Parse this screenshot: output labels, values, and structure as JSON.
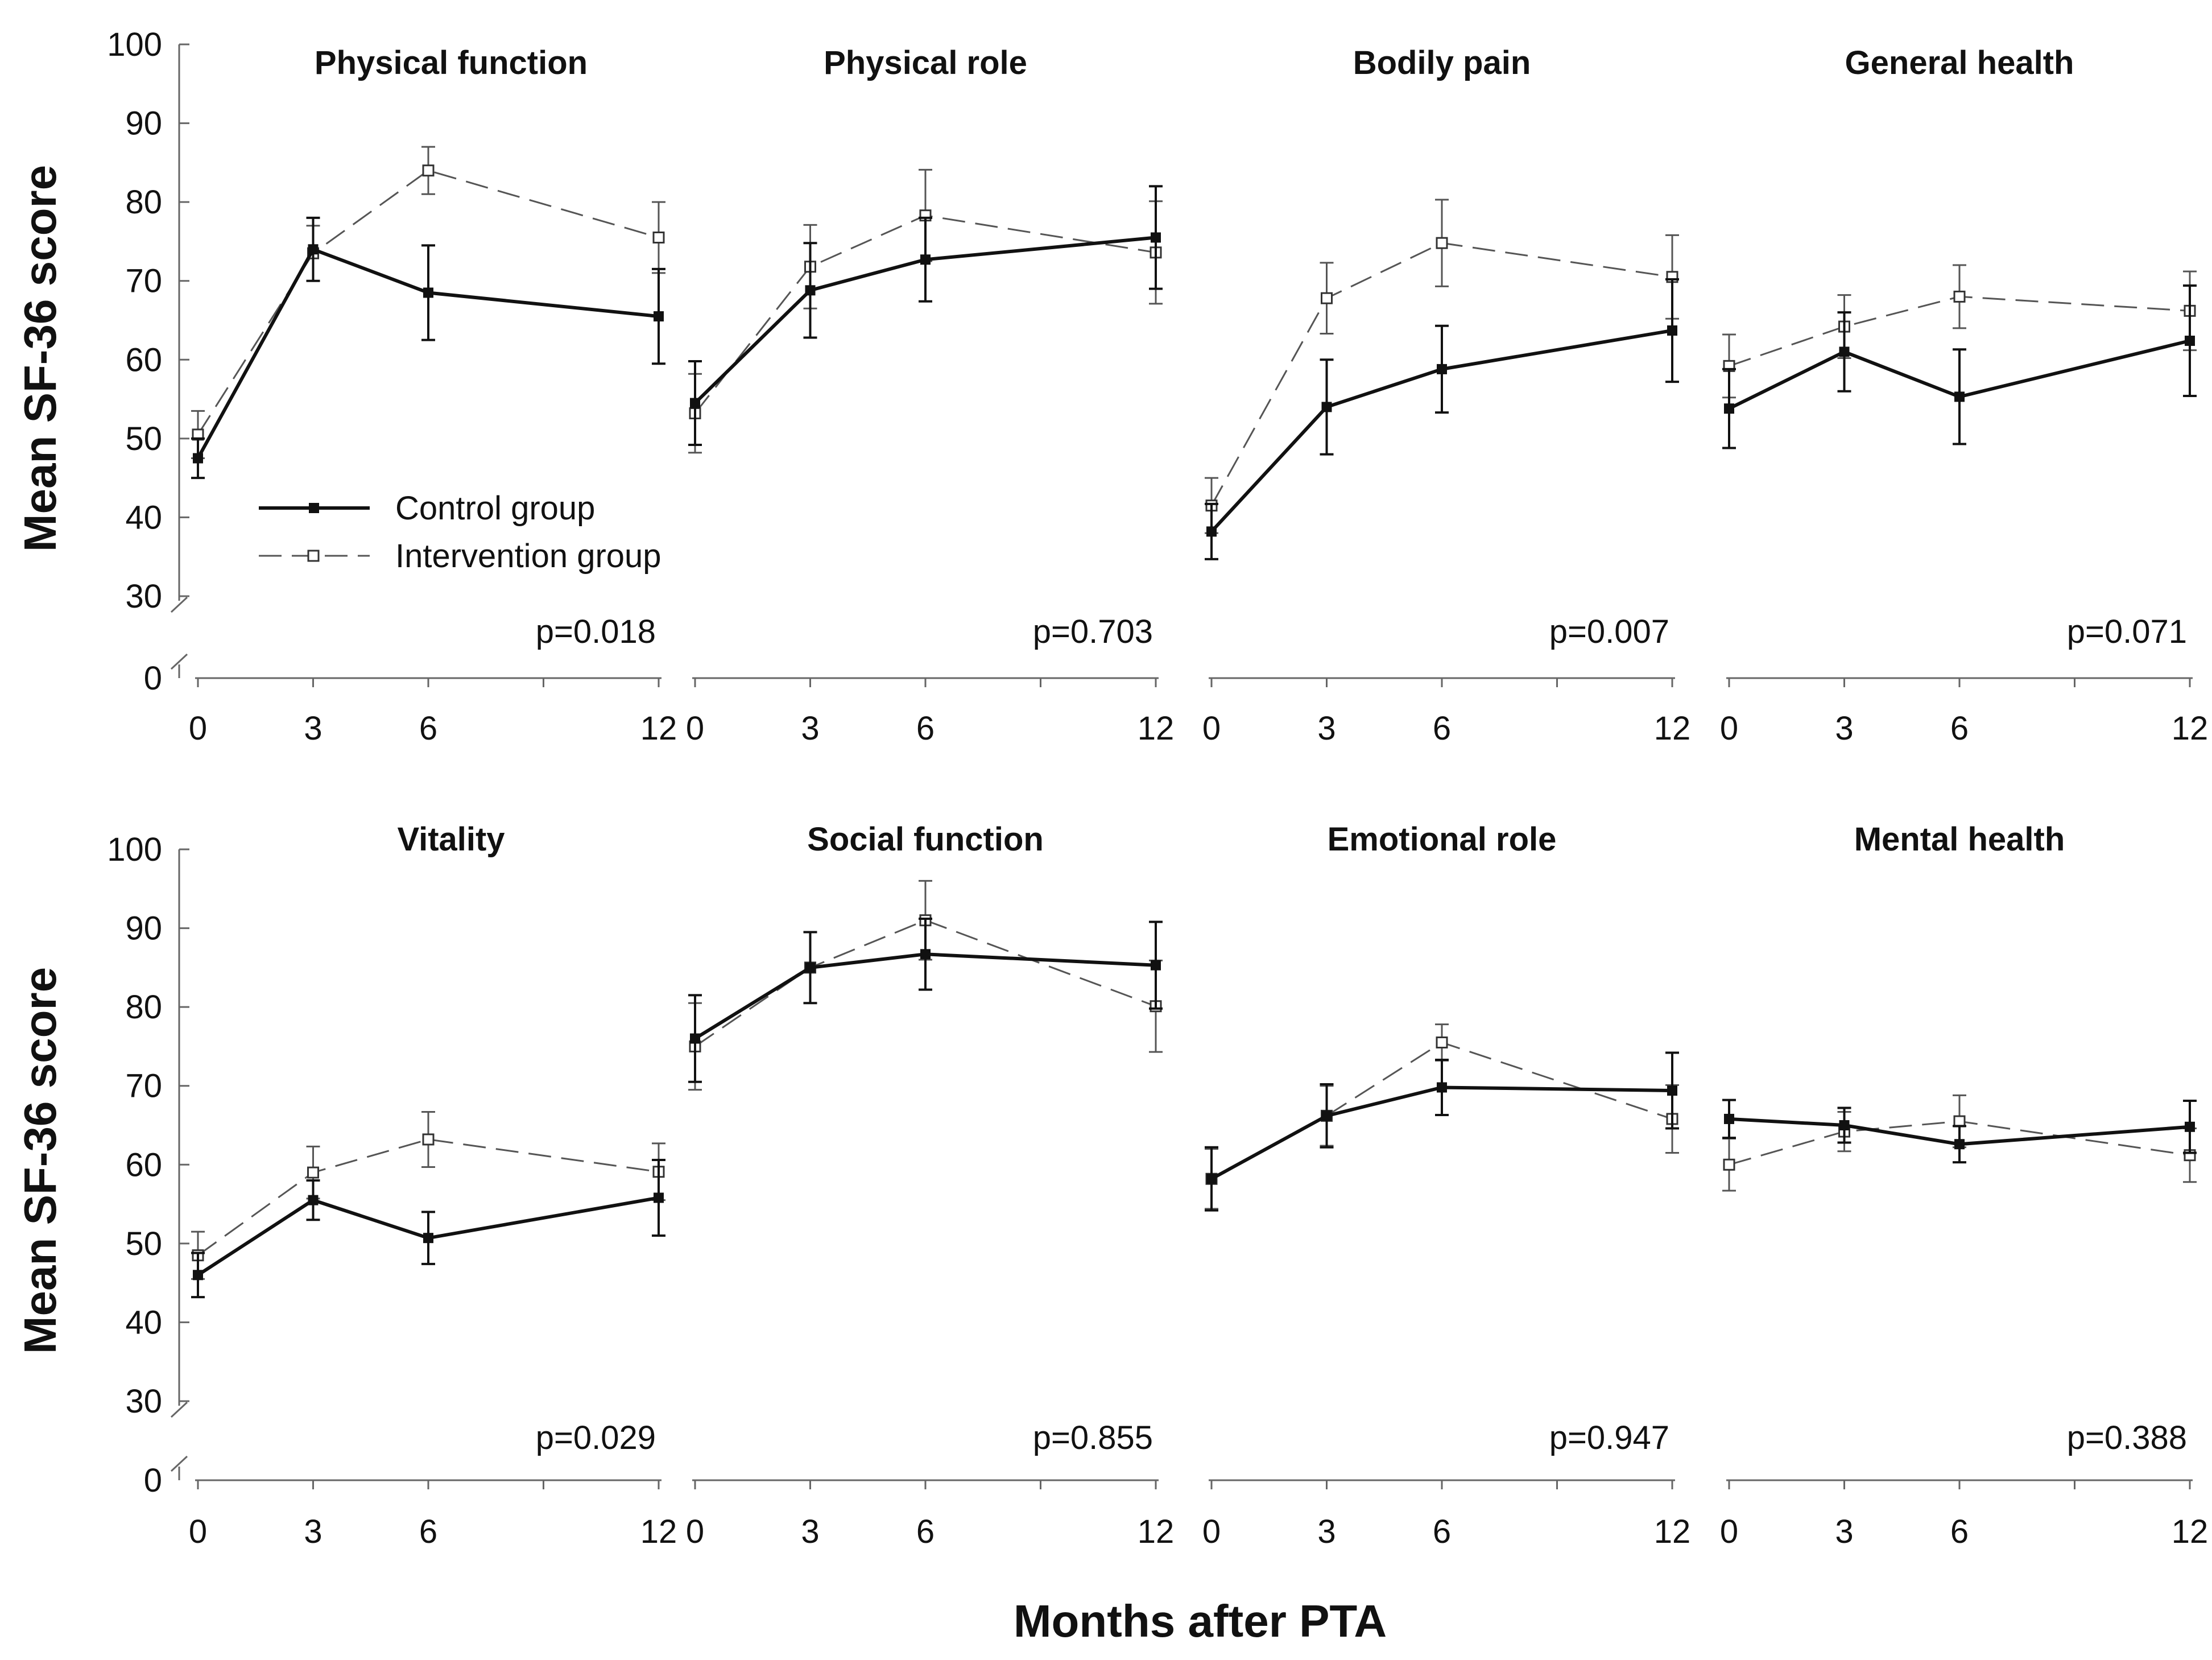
{
  "chart_data": {
    "type": "line",
    "figure": {
      "ylabel": "Mean SF-36 score",
      "xlabel": "Months after PTA",
      "x": [
        0,
        3,
        6,
        12
      ],
      "x_tick_labels": [
        "0",
        "3",
        "6",
        "12"
      ],
      "y_ticks": [
        30,
        40,
        50,
        60,
        70,
        80,
        90,
        100
      ],
      "y_tick_labels": [
        "30",
        "40",
        "50",
        "60",
        "70",
        "80",
        "90",
        "100"
      ],
      "y_zero_label": "0",
      "ylim": [
        30,
        100
      ],
      "axis_break": true,
      "legend": {
        "position": "inside-left of first panel",
        "entries": [
          {
            "name": "Control group",
            "style": "solid line, filled square"
          },
          {
            "name": "Intervention group",
            "style": "dashed line, open square"
          }
        ]
      }
    },
    "panels": [
      {
        "title": "Physical function",
        "p_value": "p=0.018",
        "series": [
          {
            "name": "Control group",
            "values": [
              47.5,
              74,
              68.5,
              65.5
            ],
            "errors": [
              2.5,
              4,
              6,
              6
            ]
          },
          {
            "name": "Intervention group",
            "values": [
              50.5,
              73.5,
              84,
              75.5
            ],
            "errors": [
              3,
              3.5,
              3,
              4.5
            ]
          }
        ]
      },
      {
        "title": "Physical role",
        "p_value": "p=0.703",
        "series": [
          {
            "name": "Control group",
            "values": [
              54.5,
              68.8,
              72.7,
              75.5
            ],
            "errors": [
              5.3,
              6,
              5.3,
              6.5
            ]
          },
          {
            "name": "Intervention group",
            "values": [
              53.2,
              71.8,
              78.3,
              73.6
            ],
            "errors": [
              5,
              5.3,
              5.8,
              6.5
            ]
          }
        ]
      },
      {
        "title": "Bodily pain",
        "p_value": "p=0.007",
        "series": [
          {
            "name": "Control group",
            "values": [
              38.2,
              54,
              58.8,
              63.7
            ],
            "errors": [
              3.5,
              6,
              5.5,
              6.5
            ]
          },
          {
            "name": "Intervention group",
            "values": [
              41.5,
              67.8,
              74.8,
              70.5
            ],
            "errors": [
              3.5,
              4.5,
              5.5,
              5.3
            ]
          }
        ]
      },
      {
        "title": "General health",
        "p_value": "p=0.071",
        "series": [
          {
            "name": "Control group",
            "values": [
              53.8,
              61,
              55.3,
              62.4
            ],
            "errors": [
              5,
              5,
              6,
              7
            ]
          },
          {
            "name": "Intervention group",
            "values": [
              59.2,
              64.2,
              68,
              66.2
            ],
            "errors": [
              4,
              4,
              4,
              5
            ]
          }
        ]
      },
      {
        "title": "Vitality",
        "p_value": "p=0.029",
        "series": [
          {
            "name": "Control group",
            "values": [
              46,
              55.5,
              50.7,
              55.8
            ],
            "errors": [
              2.8,
              2.5,
              3.3,
              4.8
            ]
          },
          {
            "name": "Intervention group",
            "values": [
              48.5,
              59,
              63.2,
              59.1
            ],
            "errors": [
              3,
              3.3,
              3.5,
              3.6
            ]
          }
        ]
      },
      {
        "title": "Social function",
        "p_value": "p=0.855",
        "series": [
          {
            "name": "Control group",
            "values": [
              76,
              85,
              86.7,
              85.3
            ],
            "errors": [
              5.5,
              4.5,
              4.5,
              5.5
            ]
          },
          {
            "name": "Intervention group",
            "values": [
              75,
              85,
              91,
              80.1
            ],
            "errors": [
              5.5,
              4.5,
              5,
              5.8
            ]
          }
        ]
      },
      {
        "title": "Emotional role",
        "p_value": "p=0.947",
        "series": [
          {
            "name": "Control group",
            "values": [
              58.2,
              66.2,
              69.8,
              69.4
            ],
            "errors": [
              4,
              4,
              3.5,
              4.8
            ]
          },
          {
            "name": "Intervention group",
            "values": [
              58.2,
              66.2,
              75.5,
              65.8
            ],
            "errors": [
              3.8,
              3.8,
              2.3,
              4.3
            ]
          }
        ]
      },
      {
        "title": "Mental health",
        "p_value": "p=0.388",
        "series": [
          {
            "name": "Control group",
            "values": [
              65.8,
              65,
              62.6,
              64.8
            ],
            "errors": [
              2.4,
              2.2,
              2.3,
              3.3
            ]
          },
          {
            "name": "Intervention group",
            "values": [
              60,
              64.2,
              65.5,
              61.2
            ],
            "errors": [
              3.3,
              2.5,
              3.3,
              3.4
            ]
          }
        ]
      }
    ]
  }
}
